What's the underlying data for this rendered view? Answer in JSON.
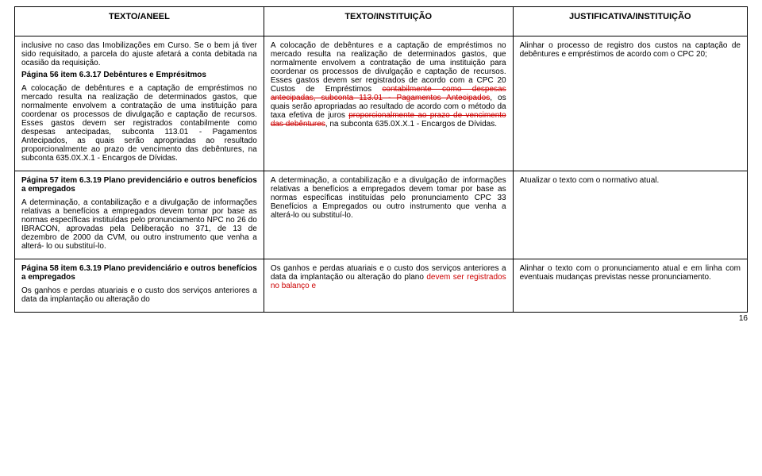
{
  "headers": {
    "c1": "TEXTO/ANEEL",
    "c2": "TEXTO/INSTITUIÇÃO",
    "c3": "JUSTIFICATIVA/INSTITUIÇÃO"
  },
  "rows": [
    {
      "c1_intro": "inclusive no caso das Imobilizações em Curso. Se o bem já tiver sido requisitado, a parcela do ajuste afetará a conta debitada na ocasião da requisição.",
      "c1_heading": "Página 56 item 6.3.17 Debêntures e Emprésitmos",
      "c1_body": "A colocação de debêntures e a captação de empréstimos no mercado resulta na realização de determinados gastos, que normalmente envolvem a contratação de uma instituição para coordenar os processos de divulgação e captação de recursos. Esses gastos devem ser registrados contabilmente como despesas antecipadas, subconta 113.01 - Pagamentos Antecipados, as quais serão apropriadas ao resultado proporcionalmente ao prazo de vencimento das debêntures, na subconta 635.0X.X.1 - Encargos de Dívidas.",
      "c2_a": "A colocação de debêntures e a captação de empréstimos no mercado resulta na realização de determinados gastos, que normalmente envolvem a contratação de uma instituição para coordenar os processos de divulgação e captação de recursos. Esses gastos devem ser registrados de acordo com a CPC 20 Custos de Empréstimos ",
      "c2_b_strike": "contabilmente como despesas antecipadas, subconta 113.01 - Pagamentos Antecipados",
      "c2_c": ", os quais serão apropriadas ao resultado de acordo com o método da taxa efetiva de juros ",
      "c2_d_strike": "proporcionalmente ao prazo de vencimento das debêntures",
      "c2_e": ", na subconta 635.0X.X.1 - Encargos de Dívidas.",
      "c3": "Alinhar o processo de registro dos custos na captação de debêntures e empréstimos de acordo com o CPC 20;"
    },
    {
      "c1_heading": "Página 57 item 6.3.19 Plano previdenciário e outros benefícios a empregados",
      "c1_body": "A determinação, a contabilização e a divulgação de informações relativas a benefícios a empregados devem tomar por base as normas específicas instituídas pelo pronunciamento NPC no 26 do IBRACON, aprovadas pela Deliberação no 371, de 13 de dezembro de 2000 da CVM, ou outro instrumento que venha a alterá- lo ou substituí-lo.",
      "c2": "A determinação, a contabilização e a divulgação de informações relativas a benefícios a empregados devem tomar por base as normas específicas instituídas pelo pronunciamento CPC 33 Benefícios a Empregados ou outro instrumento que venha a alterá-lo ou substituí-lo.",
      "c3": "Atualizar o texto com o normativo atual."
    },
    {
      "c1_heading": "Página 58 item 6.3.19 Plano previdenciário e outros benefícios a empregados",
      "c1_body": "Os ganhos e perdas atuariais e o custo dos serviços anteriores a data da implantação ou alteração do",
      "c2_a": "Os ganhos e perdas atuariais e o custo dos serviços anteriores a data da implantação ou alteração do plano ",
      "c2_b_red": "devem ser registrados no balanço e",
      "c3": "Alinhar o texto com o pronunciamento atual e em linha com eventuais mudanças previstas nesse pronunciamento."
    }
  ],
  "pageNumber": "16"
}
